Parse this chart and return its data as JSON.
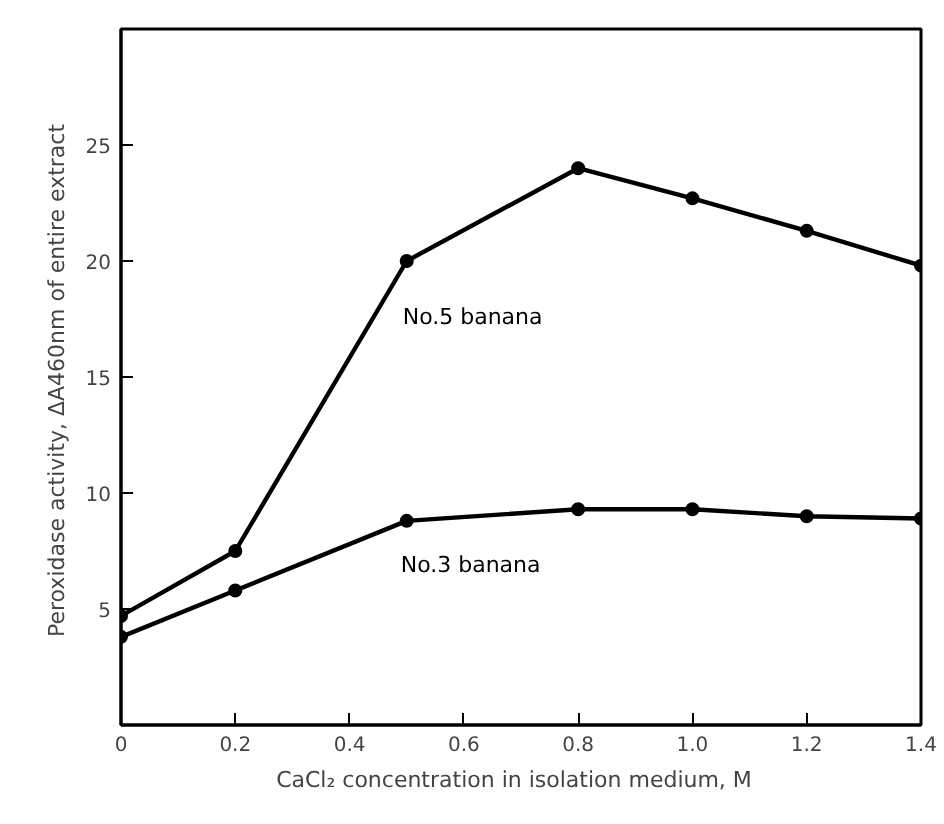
{
  "chart_data": {
    "type": "line",
    "xlabel": "CaCl₂ concentration in isolation medium,   M",
    "ylabel": "Peroxidase activity,  ΔA460nm of entire extract",
    "x": [
      0,
      0.2,
      0.5,
      0.8,
      1.0,
      1.2,
      1.4
    ],
    "series": [
      {
        "name": "No.5 banana",
        "color": "#000000",
        "values": [
          4.7,
          7.5,
          20,
          24,
          22.7,
          21.3,
          19.8
        ]
      },
      {
        "name": "No.3 banana",
        "color": "#000000",
        "values": [
          3.8,
          5.8,
          8.8,
          9.3,
          9.3,
          9.0,
          8.9
        ]
      }
    ],
    "xlim": [
      0,
      1.4
    ],
    "ylim": [
      0,
      30
    ],
    "xticks": [
      0,
      0.2,
      0.4,
      0.6,
      0.8,
      {
        "value": 1.0,
        "label": "1.0"
      },
      1.2,
      1.4
    ],
    "yticks": [
      5,
      10,
      15,
      20,
      25
    ],
    "marker": "circle",
    "line_style": "solid",
    "grid": false,
    "legend": false
  }
}
